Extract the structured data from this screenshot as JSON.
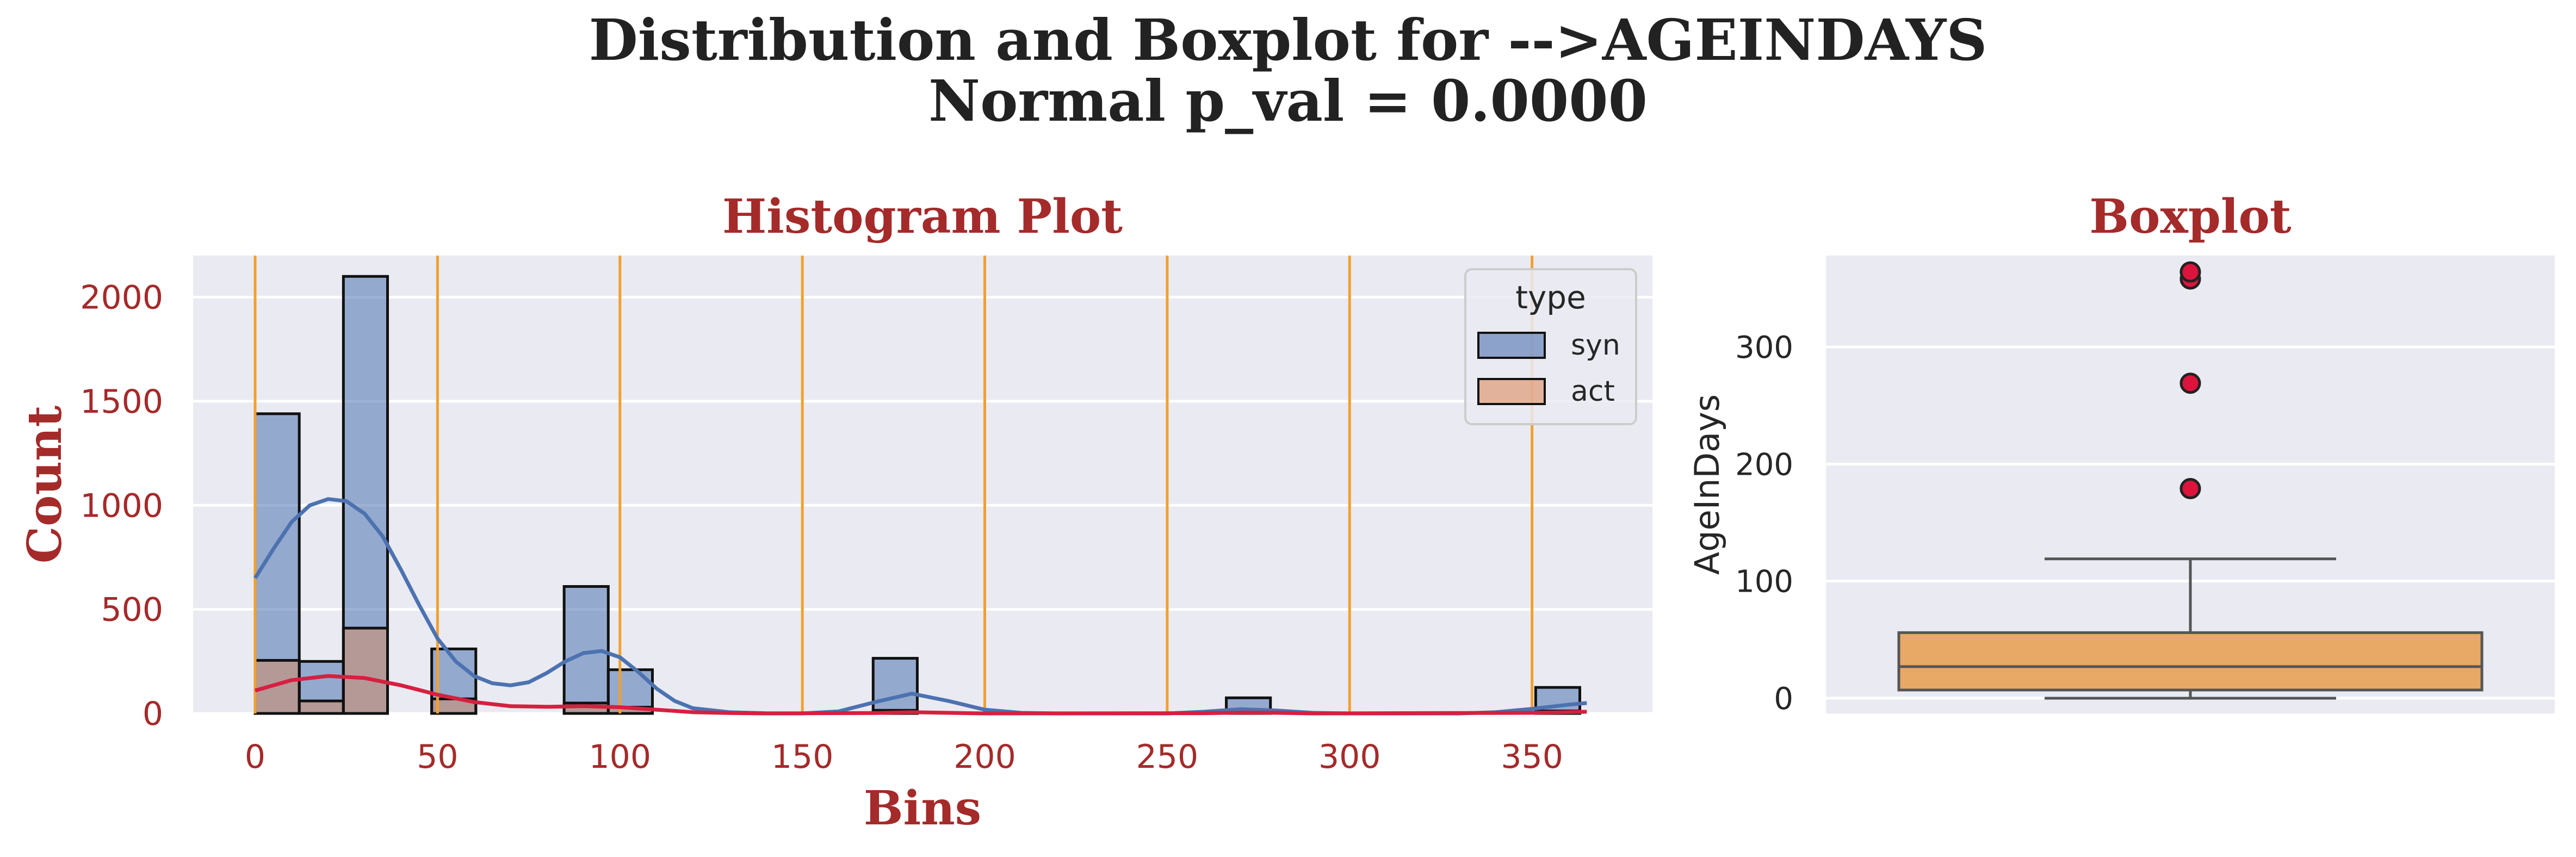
{
  "figure": {
    "title_line1": "Distribution and Boxplot for -->AGEINDAYS",
    "title_line2": "Normal p_val = 0.0000"
  },
  "colors": {
    "background": "#eaeaf2",
    "grid": "#ffffff",
    "syn": "#4c72b0",
    "act": "#dd8452",
    "kde_act": "#d62040",
    "vline": "#f0a030",
    "box": "#e8a866",
    "outlier": "#dc143c",
    "label_red": "#a52a2a"
  },
  "chart_data": [
    {
      "type": "bar",
      "subtype": "histogram",
      "title": "Histogram Plot",
      "xlabel": "Bins",
      "ylabel": "Count",
      "xlim": [
        -17,
        383
      ],
      "ylim": [
        0,
        2200
      ],
      "xticks": [
        0,
        50,
        100,
        150,
        200,
        250,
        300,
        350
      ],
      "yticks": [
        0,
        500,
        1000,
        1500,
        2000
      ],
      "bin_width": 12.1,
      "vlines": [
        0,
        50,
        100,
        150,
        200,
        250,
        300,
        350
      ],
      "legend": {
        "title": "type",
        "position": "top-right",
        "entries": [
          "syn",
          "act"
        ]
      },
      "series": [
        {
          "name": "syn",
          "bins": [
            {
              "x": 0,
              "count": 1440
            },
            {
              "x": 12.1,
              "count": 250
            },
            {
              "x": 24.2,
              "count": 2100
            },
            {
              "x": 48.4,
              "count": 310
            },
            {
              "x": 84.7,
              "count": 610
            },
            {
              "x": 96.8,
              "count": 210
            },
            {
              "x": 169.4,
              "count": 265
            },
            {
              "x": 266.2,
              "count": 75
            },
            {
              "x": 351,
              "count": 125
            }
          ],
          "kde": [
            [
              0,
              650
            ],
            [
              5,
              790
            ],
            [
              10,
              920
            ],
            [
              15,
              1000
            ],
            [
              20,
              1030
            ],
            [
              25,
              1020
            ],
            [
              30,
              960
            ],
            [
              35,
              850
            ],
            [
              40,
              690
            ],
            [
              45,
              520
            ],
            [
              50,
              360
            ],
            [
              55,
              250
            ],
            [
              60,
              180
            ],
            [
              65,
              145
            ],
            [
              70,
              135
            ],
            [
              75,
              150
            ],
            [
              80,
              195
            ],
            [
              85,
              250
            ],
            [
              90,
              290
            ],
            [
              95,
              300
            ],
            [
              100,
              270
            ],
            [
              105,
              200
            ],
            [
              110,
              120
            ],
            [
              115,
              60
            ],
            [
              120,
              25
            ],
            [
              130,
              6
            ],
            [
              140,
              1
            ],
            [
              150,
              0
            ],
            [
              160,
              10
            ],
            [
              170,
              55
            ],
            [
              180,
              95
            ],
            [
              190,
              60
            ],
            [
              200,
              18
            ],
            [
              210,
              3
            ],
            [
              220,
              0
            ],
            [
              250,
              0
            ],
            [
              260,
              8
            ],
            [
              270,
              20
            ],
            [
              280,
              14
            ],
            [
              290,
              3
            ],
            [
              300,
              0
            ],
            [
              330,
              0
            ],
            [
              340,
              6
            ],
            [
              350,
              22
            ],
            [
              360,
              42
            ],
            [
              365,
              50
            ]
          ]
        },
        {
          "name": "act",
          "bins": [
            {
              "x": 0,
              "count": 255
            },
            {
              "x": 12.1,
              "count": 60
            },
            {
              "x": 24.2,
              "count": 410
            },
            {
              "x": 48.4,
              "count": 70
            },
            {
              "x": 84.7,
              "count": 50
            },
            {
              "x": 96.8,
              "count": 30
            },
            {
              "x": 169.4,
              "count": 15
            },
            {
              "x": 266.2,
              "count": 10
            },
            {
              "x": 351,
              "count": 12
            }
          ],
          "kde": [
            [
              0,
              110
            ],
            [
              10,
              160
            ],
            [
              20,
              180
            ],
            [
              30,
              170
            ],
            [
              40,
              135
            ],
            [
              50,
              90
            ],
            [
              60,
              55
            ],
            [
              70,
              35
            ],
            [
              80,
              32
            ],
            [
              90,
              35
            ],
            [
              100,
              30
            ],
            [
              110,
              18
            ],
            [
              120,
              6
            ],
            [
              130,
              2
            ],
            [
              140,
              0
            ],
            [
              170,
              2
            ],
            [
              180,
              6
            ],
            [
              190,
              3
            ],
            [
              200,
              0
            ],
            [
              260,
              1
            ],
            [
              270,
              4
            ],
            [
              280,
              3
            ],
            [
              290,
              0
            ],
            [
              350,
              3
            ],
            [
              365,
              8
            ]
          ]
        }
      ]
    },
    {
      "type": "boxplot",
      "title": "Boxplot",
      "ylabel": "AgeInDays",
      "ylim": [
        -13,
        378
      ],
      "yticks": [
        0,
        100,
        200,
        300
      ],
      "whisker_low": 0,
      "q1": 7,
      "median": 27,
      "q3": 56,
      "whisker_high": 119,
      "outliers": [
        179,
        269,
        358,
        364
      ]
    }
  ]
}
